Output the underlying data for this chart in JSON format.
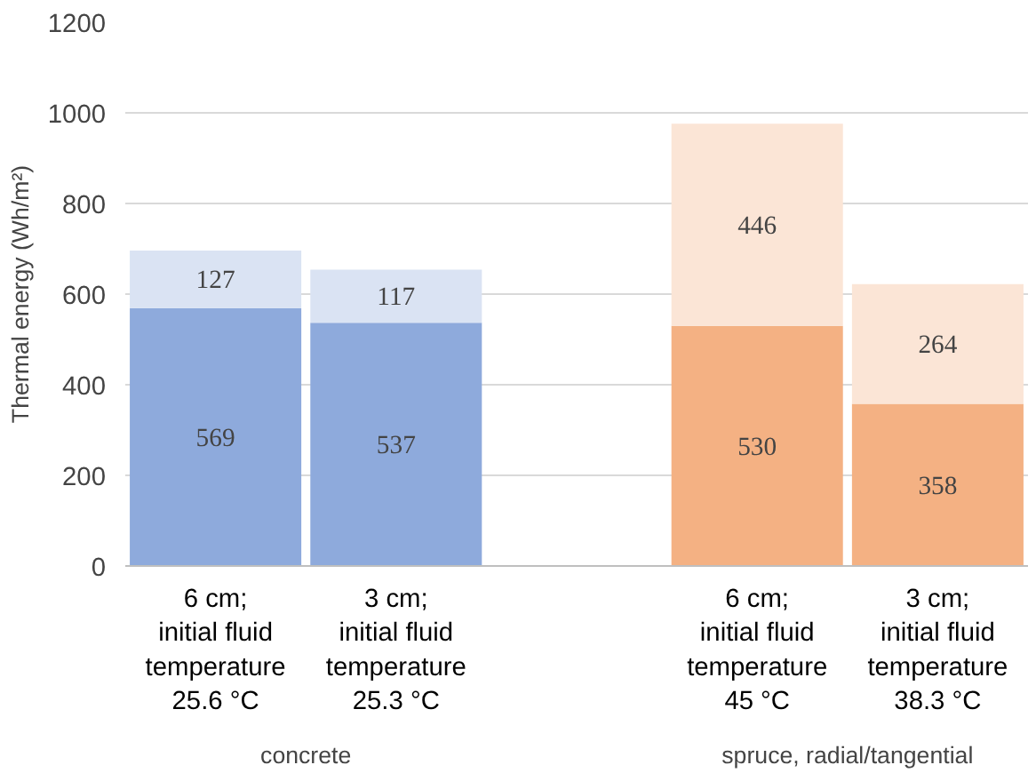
{
  "chart_data": {
    "type": "bar",
    "stacked": true,
    "ylabel": "Thermal energy (Wh/m²)",
    "categories": [
      "6 cm;\ninitial fluid\ntemperature\n25.6 °C",
      "3 cm;\ninitial fluid\ntemperature\n25.3 °C",
      null,
      "6 cm;\ninitial fluid\ntemperature\n45 °C",
      "3 cm;\ninitial fluid\ntemperature\n38.3 °C"
    ],
    "series": [
      {
        "colors": [
          "#8eaadc",
          "#8eaadc",
          "#8eaadc",
          "#f4b183",
          "#f4b183"
        ],
        "values": [
          569,
          537,
          null,
          530,
          358
        ]
      },
      {
        "colors": [
          "#dae3f3",
          "#dae3f3",
          "#dae3f3",
          "#fbe5d6",
          "#fbe5d6"
        ],
        "values": [
          127,
          117,
          null,
          446,
          264
        ]
      }
    ],
    "ylim": [
      0,
      1200
    ],
    "yticks": [
      0,
      200,
      400,
      600,
      800,
      1000,
      1200
    ],
    "grid": "y",
    "data_labels": true,
    "annotations": [
      "concrete",
      "spruce, radial/tangential"
    ]
  }
}
